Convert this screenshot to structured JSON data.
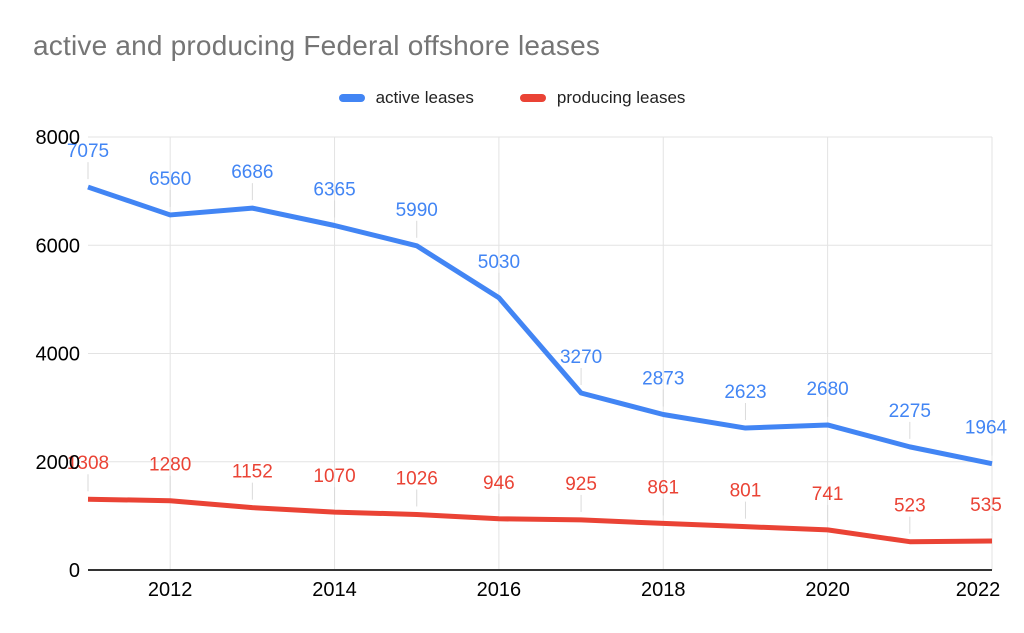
{
  "title": "active and producing Federal offshore leases",
  "chart_data": {
    "type": "line",
    "x": [
      2011,
      2012,
      2013,
      2014,
      2015,
      2016,
      2017,
      2018,
      2019,
      2020,
      2021,
      2022
    ],
    "series": [
      {
        "name": "active leases",
        "color": "#4285f4",
        "values": [
          7075,
          6560,
          6686,
          6365,
          5990,
          5030,
          3270,
          2873,
          2623,
          2680,
          2275,
          1964
        ]
      },
      {
        "name": "producing leases",
        "color": "#ea4335",
        "values": [
          1308,
          1280,
          1152,
          1070,
          1026,
          946,
          925,
          861,
          801,
          741,
          523,
          535
        ]
      }
    ],
    "xticks": [
      2012,
      2014,
      2016,
      2018,
      2020,
      2022
    ],
    "yticks": [
      0,
      2000,
      4000,
      6000,
      8000
    ],
    "ylim": [
      0,
      8000
    ],
    "grid": true,
    "legend_position": "top",
    "data_labels": true,
    "title_color": "#757575",
    "axis_label_color": "#000000",
    "gridline_color": "#e3e3e3",
    "annotation_stem_color": "#dadada",
    "axis_line_color": "#333333",
    "background": "#ffffff"
  }
}
